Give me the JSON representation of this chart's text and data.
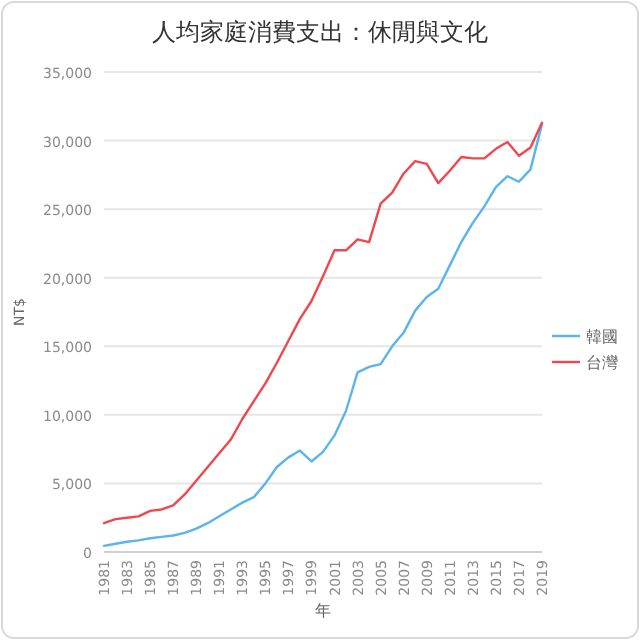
{
  "chart_data": {
    "type": "line",
    "title": "人均家庭消費支出：休閒與文化",
    "xlabel": "年",
    "ylabel": "NT$",
    "categories": [
      "1981",
      null,
      "1983",
      null,
      "1985",
      null,
      "1987",
      null,
      "1989",
      null,
      "1991",
      null,
      "1993",
      null,
      "1995",
      null,
      "1997",
      null,
      "1999",
      null,
      "2001",
      null,
      "2003",
      null,
      "2005",
      null,
      "2007",
      null,
      "2009",
      null,
      "2011",
      null,
      "2013",
      null,
      "2015",
      null,
      "2017",
      null,
      "2019"
    ],
    "series": [
      {
        "name": "韓國",
        "color": "#5ab4ee",
        "values": [
          450,
          600,
          750,
          850,
          1000,
          1100,
          1200,
          1400,
          1700,
          2100,
          2600,
          3100,
          3600,
          4000,
          5000,
          6200,
          6900,
          7400,
          6600,
          7300,
          8500,
          10300,
          13100,
          13500,
          13700,
          15000,
          16000,
          17600,
          18600,
          19200,
          20900,
          22600,
          24000,
          25200,
          26600,
          27400,
          27000,
          27900,
          31200
        ]
      },
      {
        "name": "台灣",
        "color": "#f0474f",
        "values": [
          2100,
          2400,
          2500,
          2600,
          3000,
          3100,
          3400,
          4200,
          5200,
          6200,
          7200,
          8200,
          9700,
          11000,
          12300,
          13800,
          15400,
          17000,
          18300,
          20100,
          22000,
          22000,
          22800,
          22600,
          25400,
          26200,
          27600,
          28500,
          28300,
          26900,
          27800,
          28800,
          28700,
          28700,
          29400,
          29900,
          28900,
          29500,
          31300
        ]
      }
    ],
    "ylim": [
      0,
      35000
    ],
    "yticks": [
      {
        "value": 0,
        "label": "0"
      },
      {
        "value": 5000,
        "label": "5,000"
      },
      {
        "value": 10000,
        "label": "10,000"
      },
      {
        "value": 15000,
        "label": "15,000"
      },
      {
        "value": 20000,
        "label": "20,000"
      },
      {
        "value": 25000,
        "label": "25,000"
      },
      {
        "value": 30000,
        "label": "30,000"
      },
      {
        "value": 35000,
        "label": "35,000"
      }
    ],
    "grid": "y",
    "legend": "right"
  }
}
